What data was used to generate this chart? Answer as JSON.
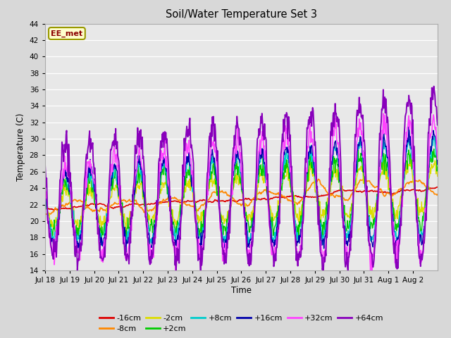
{
  "title": "Soil/Water Temperature Set 3",
  "xlabel": "Time",
  "ylabel": "Temperature (C)",
  "ylim": [
    14,
    44
  ],
  "yticks": [
    14,
    16,
    18,
    20,
    22,
    24,
    26,
    28,
    30,
    32,
    34,
    36,
    38,
    40,
    42,
    44
  ],
  "annotation_text": "EE_met",
  "annotation_box_facecolor": "#ffffcc",
  "annotation_box_edgecolor": "#999900",
  "annotation_text_color": "#8b0000",
  "fig_facecolor": "#d8d8d8",
  "plot_bg_color": "#e8e8e8",
  "grid_color": "#ffffff",
  "series_colors": {
    "-16cm": "#dd0000",
    "-8cm": "#ff8800",
    "-2cm": "#dddd00",
    "+2cm": "#00cc00",
    "+8cm": "#00cccc",
    "+16cm": "#0000aa",
    "+32cm": "#ff44ff",
    "+64cm": "#8800bb"
  },
  "legend_order": [
    "-16cm",
    "-8cm",
    "-2cm",
    "+2cm",
    "+8cm",
    "+16cm",
    "+32cm",
    "+64cm"
  ],
  "x_tick_labels": [
    "Jul 18",
    "Jul 19",
    "Jul 20",
    "Jul 21",
    "Jul 22",
    "Jul 23",
    "Jul 24",
    "Jul 25",
    "Jul 26",
    "Jul 27",
    "Jul 28",
    "Jul 29",
    "Jul 30",
    "Jul 31",
    "Aug 1",
    "Aug 2"
  ],
  "n_days": 16,
  "n_per_day": 48
}
